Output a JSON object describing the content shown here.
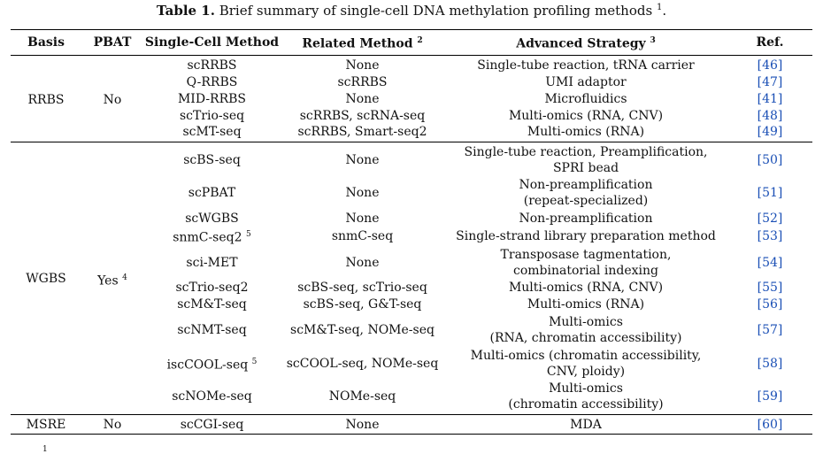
{
  "caption": {
    "label": "Table 1.",
    "text": "Brief summary of single-cell DNA methylation profiling methods",
    "sup": "1",
    "end": "."
  },
  "headers": {
    "basis": "Basis",
    "pbat": "PBAT",
    "method": "Single-Cell Method",
    "related": "Related Method",
    "related_sup": "2",
    "advanced": "Advanced Strategy",
    "advanced_sup": "3",
    "ref": "Ref."
  },
  "groups": {
    "rrbs": {
      "basis": "RRBS",
      "pbat": "No"
    },
    "wgbs": {
      "basis": "WGBS",
      "pbat": "Yes",
      "pbat_sup": "4"
    },
    "msre": {
      "basis": "MSRE",
      "pbat": "No"
    }
  },
  "rows": [
    {
      "method": "scRRBS",
      "method_sup": "",
      "related": "None",
      "advanced": "Single-tube reaction, tRNA carrier",
      "ref": "[46]"
    },
    {
      "method": "Q-RRBS",
      "method_sup": "",
      "related": "scRRBS",
      "advanced": "UMI adaptor",
      "ref": "[47]"
    },
    {
      "method": "MID-RRBS",
      "method_sup": "",
      "related": "None",
      "advanced": "Microfluidics",
      "ref": "[41]"
    },
    {
      "method": "scTrio-seq",
      "method_sup": "",
      "related": "scRRBS, scRNA-seq",
      "advanced": "Multi-omics (RNA, CNV)",
      "ref": "[48]"
    },
    {
      "method": "scMT-seq",
      "method_sup": "",
      "related": "scRRBS, Smart-seq2",
      "advanced": "Multi-omics (RNA)",
      "ref": "[49]"
    },
    {
      "method": "scBS-seq",
      "method_sup": "",
      "related": "None",
      "advanced": "Single-tube reaction, Preamplification,",
      "advanced2": "SPRI bead",
      "ref": "[50]"
    },
    {
      "method": "scPBAT",
      "method_sup": "",
      "related": "None",
      "advanced": "Non-preamplification",
      "advanced2": "(repeat-specialized)",
      "ref": "[51]"
    },
    {
      "method": "scWGBS",
      "method_sup": "",
      "related": "None",
      "advanced": "Non-preamplification",
      "ref": "[52]"
    },
    {
      "method": "snmC-seq2",
      "method_sup": "5",
      "related": "snmC-seq",
      "advanced": "Single-strand library preparation method",
      "ref": "[53]"
    },
    {
      "method": "sci-MET",
      "method_sup": "",
      "related": "None",
      "advanced": "Transposase tagmentation,",
      "advanced2": "combinatorial indexing",
      "ref": "[54]"
    },
    {
      "method": "scTrio-seq2",
      "method_sup": "",
      "related": "scBS-seq, scTrio-seq",
      "advanced": "Multi-omics (RNA, CNV)",
      "ref": "[55]"
    },
    {
      "method": "scM&T-seq",
      "method_sup": "",
      "related": "scBS-seq, G&T-seq",
      "advanced": "Multi-omics (RNA)",
      "ref": "[56]"
    },
    {
      "method": "scNMT-seq",
      "method_sup": "",
      "related": "scM&T-seq, NOMe-seq",
      "advanced": "Multi-omics",
      "advanced2": "(RNA, chromatin accessibility)",
      "ref": "[57]"
    },
    {
      "method": "iscCOOL-seq",
      "method_sup": "5",
      "related": "scCOOL-seq, NOMe-seq",
      "advanced": "Multi-omics (chromatin accessibility,",
      "advanced2": "CNV, ploidy)",
      "ref": "[58]"
    },
    {
      "method": "scNOMe-seq",
      "method_sup": "",
      "related": "NOMe-seq",
      "advanced": "Multi-omics",
      "advanced2": "(chromatin accessibility)",
      "ref": "[59]"
    },
    {
      "method": "scCGI-seq",
      "method_sup": "",
      "related": "None",
      "advanced": "MDA",
      "ref": "[60]"
    }
  ],
  "footnote_mark": "1"
}
